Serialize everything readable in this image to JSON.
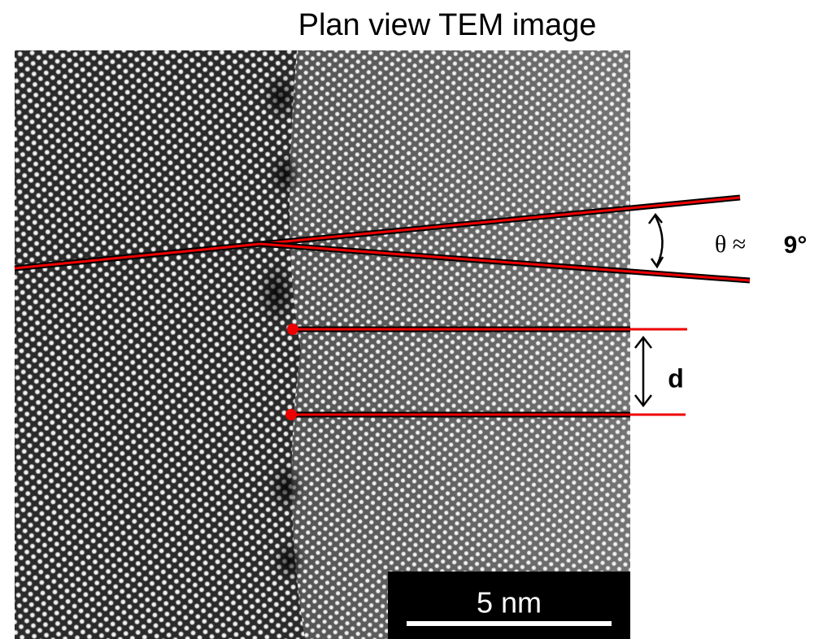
{
  "header": {
    "title": "Plan view TEM image"
  },
  "annotations": {
    "angle_symbol": "θ ≈",
    "angle_value": "9°",
    "spacing_label": "d"
  },
  "scale_bar": {
    "label": "5 nm"
  }
}
